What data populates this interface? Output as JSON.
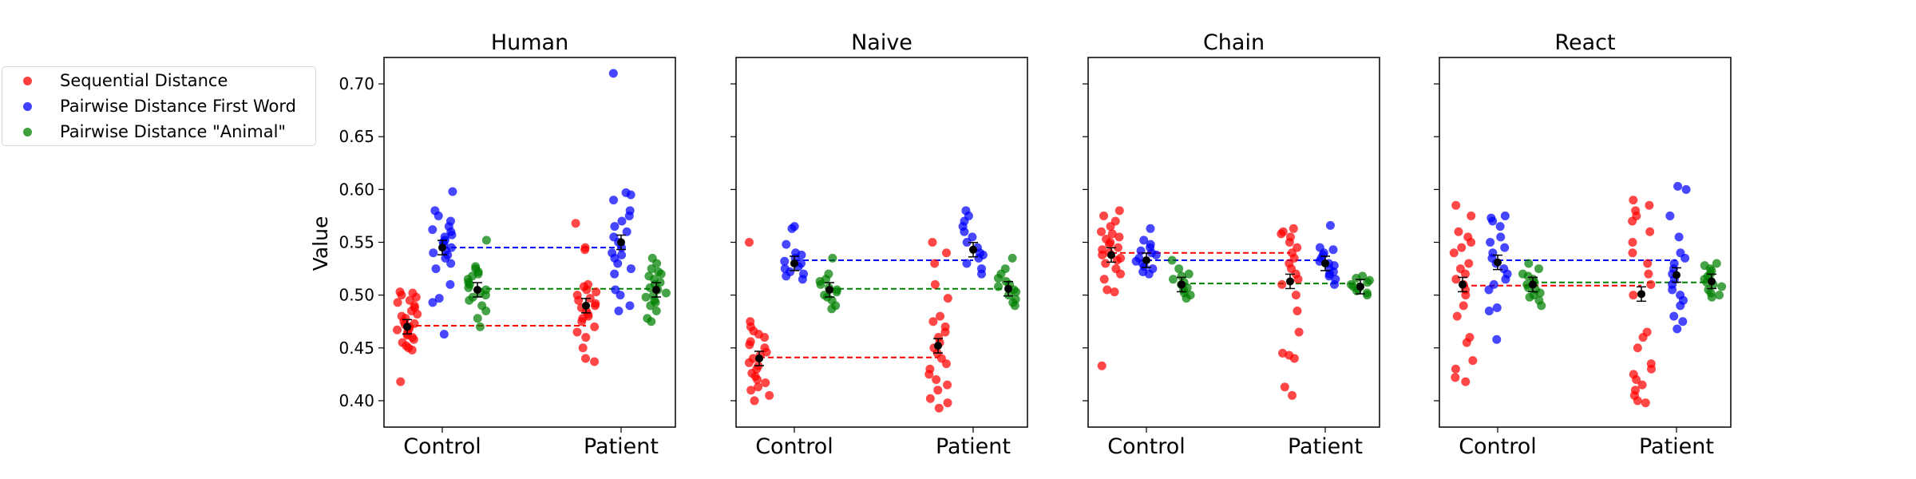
{
  "colors": {
    "Sequential Distance": "#ff0000",
    "Pairwise Distance First Word": "#0000ff",
    "Pairwise Distance \"Animal\"": "#008000"
  },
  "legend": {
    "placement": "upper-left, outside panels",
    "items": [
      {
        "label": "Sequential Distance",
        "color": "#ff0000"
      },
      {
        "label": "Pairwise Distance First Word",
        "color": "#0000ff"
      },
      {
        "label": "Pairwise Distance \"Animal\"",
        "color": "#008000"
      }
    ]
  },
  "chart_data": {
    "type": "scatter",
    "ylabel": "Value",
    "ylim": [
      0.375,
      0.725
    ],
    "yticks": [
      "0.40",
      "0.45",
      "0.50",
      "0.55",
      "0.60",
      "0.65",
      "0.70"
    ],
    "categories": [
      "Control",
      "Patient"
    ],
    "panels": [
      {
        "title": "Human",
        "means": {
          "Control": [
            0.47,
            0.545,
            0.505
          ],
          "Patient": [
            0.49,
            0.55,
            0.505
          ]
        },
        "ref_lines": [
          0.471,
          0.545,
          0.506
        ],
        "series": [
          {
            "name": "Sequential Distance",
            "Control": [
              0.418,
              0.448,
              0.45,
              0.452,
              0.455,
              0.458,
              0.46,
              0.462,
              0.463,
              0.465,
              0.467,
              0.468,
              0.47,
              0.472,
              0.473,
              0.475,
              0.478,
              0.48,
              0.482,
              0.485,
              0.488,
              0.49,
              0.493,
              0.495,
              0.498,
              0.5,
              0.502,
              0.503
            ],
            "Patient": [
              0.437,
              0.44,
              0.45,
              0.46,
              0.465,
              0.47,
              0.475,
              0.478,
              0.48,
              0.482,
              0.485,
              0.488,
              0.49,
              0.492,
              0.495,
              0.497,
              0.5,
              0.503,
              0.505,
              0.508,
              0.51,
              0.543,
              0.545,
              0.568
            ]
          },
          {
            "name": "Pairwise Distance First Word",
            "Control": [
              0.463,
              0.493,
              0.497,
              0.51,
              0.525,
              0.53,
              0.535,
              0.538,
              0.54,
              0.542,
              0.545,
              0.548,
              0.55,
              0.552,
              0.555,
              0.557,
              0.56,
              0.562,
              0.565,
              0.57,
              0.575,
              0.58,
              0.598
            ],
            "Patient": [
              0.485,
              0.49,
              0.5,
              0.505,
              0.52,
              0.525,
              0.53,
              0.535,
              0.538,
              0.54,
              0.545,
              0.55,
              0.555,
              0.56,
              0.565,
              0.57,
              0.575,
              0.58,
              0.59,
              0.595,
              0.597,
              0.71
            ]
          },
          {
            "name": "Pairwise Distance \"Animal\"",
            "Control": [
              0.47,
              0.478,
              0.485,
              0.49,
              0.495,
              0.498,
              0.5,
              0.502,
              0.505,
              0.507,
              0.51,
              0.512,
              0.515,
              0.518,
              0.52,
              0.522,
              0.525,
              0.527,
              0.552
            ],
            "Patient": [
              0.475,
              0.478,
              0.485,
              0.49,
              0.493,
              0.495,
              0.498,
              0.5,
              0.502,
              0.505,
              0.507,
              0.51,
              0.512,
              0.515,
              0.518,
              0.52,
              0.522,
              0.525,
              0.53,
              0.535
            ]
          }
        ]
      },
      {
        "title": "Naive",
        "means": {
          "Control": [
            0.44,
            0.53,
            0.505
          ],
          "Patient": [
            0.452,
            0.543,
            0.506
          ]
        },
        "ref_lines": [
          0.441,
          0.533,
          0.506
        ],
        "series": [
          {
            "name": "Sequential Distance",
            "Control": [
              0.4,
              0.405,
              0.41,
              0.413,
              0.417,
              0.42,
              0.423,
              0.426,
              0.43,
              0.433,
              0.436,
              0.44,
              0.443,
              0.446,
              0.45,
              0.453,
              0.456,
              0.46,
              0.463,
              0.466,
              0.47,
              0.475,
              0.55
            ],
            "Patient": [
              0.393,
              0.398,
              0.402,
              0.41,
              0.415,
              0.42,
              0.425,
              0.43,
              0.435,
              0.44,
              0.445,
              0.45,
              0.455,
              0.46,
              0.465,
              0.47,
              0.475,
              0.48,
              0.497,
              0.51,
              0.53,
              0.54,
              0.55
            ]
          },
          {
            "name": "Pairwise Distance First Word",
            "Control": [
              0.515,
              0.518,
              0.52,
              0.522,
              0.525,
              0.527,
              0.53,
              0.532,
              0.535,
              0.538,
              0.54,
              0.548,
              0.563,
              0.565
            ],
            "Patient": [
              0.52,
              0.525,
              0.53,
              0.535,
              0.538,
              0.54,
              0.545,
              0.55,
              0.555,
              0.56,
              0.565,
              0.57,
              0.575,
              0.58
            ]
          },
          {
            "name": "Pairwise Distance \"Animal\"",
            "Control": [
              0.487,
              0.49,
              0.495,
              0.498,
              0.5,
              0.503,
              0.505,
              0.507,
              0.51,
              0.513,
              0.515,
              0.52,
              0.535
            ],
            "Patient": [
              0.49,
              0.493,
              0.496,
              0.5,
              0.503,
              0.505,
              0.508,
              0.51,
              0.513,
              0.516,
              0.52,
              0.525,
              0.535
            ]
          }
        ]
      },
      {
        "title": "Chain",
        "means": {
          "Control": [
            0.538,
            0.533,
            0.51
          ],
          "Patient": [
            0.513,
            0.53,
            0.508
          ]
        },
        "ref_lines": [
          0.54,
          0.533,
          0.511
        ],
        "series": [
          {
            "name": "Sequential Distance",
            "Control": [
              0.433,
              0.503,
              0.505,
              0.515,
              0.52,
              0.525,
              0.53,
              0.533,
              0.535,
              0.538,
              0.54,
              0.543,
              0.545,
              0.548,
              0.55,
              0.553,
              0.555,
              0.558,
              0.56,
              0.565,
              0.57,
              0.575,
              0.58
            ],
            "Patient": [
              0.405,
              0.413,
              0.44,
              0.443,
              0.445,
              0.465,
              0.485,
              0.5,
              0.51,
              0.515,
              0.52,
              0.525,
              0.53,
              0.535,
              0.54,
              0.545,
              0.55,
              0.555,
              0.558,
              0.56,
              0.563
            ]
          },
          {
            "name": "Pairwise Distance First Word",
            "Control": [
              0.52,
              0.522,
              0.525,
              0.527,
              0.53,
              0.532,
              0.535,
              0.538,
              0.54,
              0.542,
              0.545,
              0.548,
              0.552,
              0.563
            ],
            "Patient": [
              0.51,
              0.515,
              0.518,
              0.52,
              0.522,
              0.525,
              0.528,
              0.53,
              0.532,
              0.535,
              0.538,
              0.54,
              0.543,
              0.545,
              0.566
            ]
          },
          {
            "name": "Pairwise Distance \"Animal\"",
            "Control": [
              0.497,
              0.5,
              0.502,
              0.505,
              0.507,
              0.51,
              0.512,
              0.515,
              0.518,
              0.52,
              0.525,
              0.533
            ],
            "Patient": [
              0.5,
              0.502,
              0.504,
              0.506,
              0.508,
              0.51,
              0.512,
              0.514,
              0.516,
              0.518
            ]
          }
        ]
      },
      {
        "title": "React",
        "means": {
          "Control": [
            0.51,
            0.531,
            0.51
          ],
          "Patient": [
            0.501,
            0.519,
            0.513
          ]
        },
        "ref_lines": [
          0.509,
          0.533,
          0.512
        ],
        "series": [
          {
            "name": "Sequential Distance",
            "Control": [
              0.418,
              0.422,
              0.43,
              0.438,
              0.455,
              0.46,
              0.48,
              0.49,
              0.5,
              0.505,
              0.51,
              0.515,
              0.52,
              0.525,
              0.53,
              0.54,
              0.545,
              0.55,
              0.555,
              0.56,
              0.575,
              0.585
            ],
            "Patient": [
              0.398,
              0.4,
              0.405,
              0.41,
              0.415,
              0.42,
              0.425,
              0.43,
              0.435,
              0.45,
              0.46,
              0.465,
              0.5,
              0.51,
              0.52,
              0.53,
              0.54,
              0.55,
              0.56,
              0.57,
              0.575,
              0.58,
              0.585,
              0.59
            ]
          },
          {
            "name": "Pairwise Distance First Word",
            "Control": [
              0.458,
              0.485,
              0.488,
              0.505,
              0.51,
              0.515,
              0.52,
              0.525,
              0.53,
              0.535,
              0.54,
              0.545,
              0.55,
              0.555,
              0.565,
              0.57,
              0.573,
              0.575
            ],
            "Patient": [
              0.468,
              0.475,
              0.48,
              0.49,
              0.495,
              0.5,
              0.505,
              0.51,
              0.515,
              0.52,
              0.525,
              0.53,
              0.535,
              0.54,
              0.555,
              0.575,
              0.6,
              0.603
            ]
          },
          {
            "name": "Pairwise Distance \"Animal\"",
            "Control": [
              0.49,
              0.495,
              0.498,
              0.5,
              0.502,
              0.505,
              0.507,
              0.51,
              0.512,
              0.515,
              0.518,
              0.52,
              0.525,
              0.53
            ],
            "Patient": [
              0.498,
              0.5,
              0.502,
              0.505,
              0.508,
              0.51,
              0.512,
              0.515,
              0.518,
              0.52,
              0.523,
              0.525,
              0.528,
              0.53
            ]
          }
        ]
      }
    ]
  }
}
